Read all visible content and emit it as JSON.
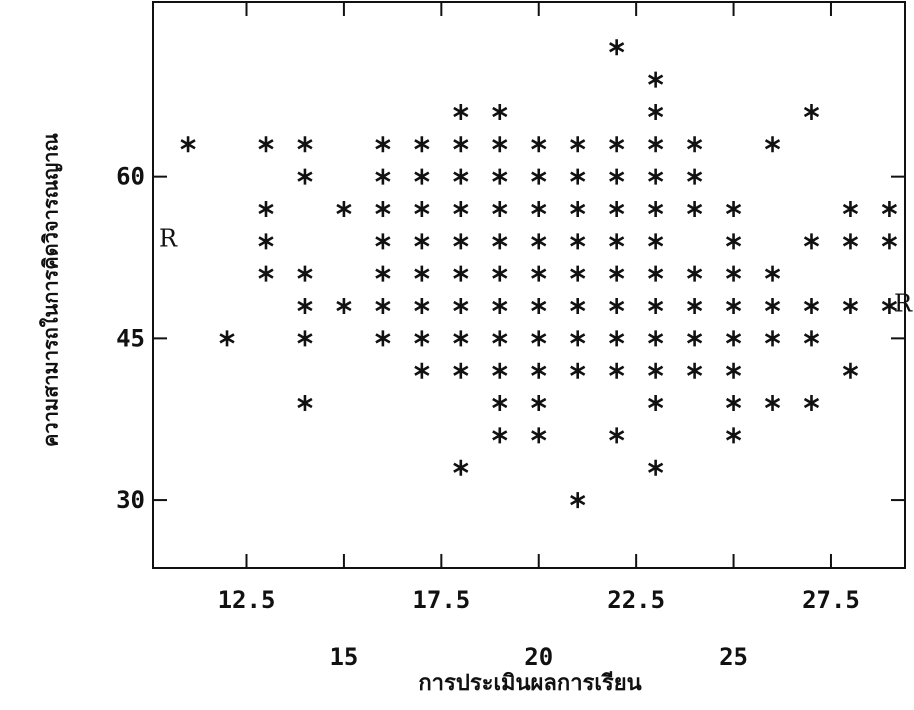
{
  "chart_data": {
    "type": "scatter",
    "x_label": "การประเมินผลการเรียน",
    "y_label": "ความสามารถในการคิดวิจารณญาณ",
    "annotations": [
      "R",
      "R"
    ],
    "xlim": [
      10.1,
      29.4
    ],
    "ylim": [
      23.7,
      76.2
    ],
    "xticks": [
      12.5,
      15,
      17.5,
      20,
      22.5,
      25,
      27.5
    ],
    "yticks": [
      30,
      45,
      60
    ],
    "color": "#111111",
    "series": [
      {
        "x": [
          11,
          12,
          13,
          13,
          13,
          13,
          14,
          14,
          14,
          14,
          14,
          14,
          15,
          15,
          16,
          16,
          16,
          16,
          16,
          16,
          16,
          17,
          17,
          17,
          17,
          17,
          17,
          17,
          17,
          18,
          18,
          18,
          18,
          18,
          18,
          18,
          18,
          18,
          18,
          19,
          19,
          19,
          19,
          19,
          19,
          19,
          19,
          19,
          19,
          19,
          20,
          20,
          20,
          20,
          20,
          20,
          20,
          20,
          20,
          20,
          21,
          21,
          21,
          21,
          21,
          21,
          21,
          21,
          21,
          22,
          22,
          22,
          22,
          22,
          22,
          22,
          22,
          22,
          22,
          23,
          23,
          23,
          23,
          23,
          23,
          23,
          23,
          23,
          23,
          23,
          23,
          24,
          24,
          24,
          24,
          24,
          24,
          24,
          25,
          25,
          25,
          25,
          25,
          25,
          25,
          25,
          26,
          26,
          26,
          26,
          26,
          27,
          27,
          27,
          27,
          27,
          28,
          28,
          28,
          28,
          29,
          29,
          29
        ],
        "values": [
          63,
          45,
          63,
          57,
          54,
          51,
          63,
          60,
          51,
          48,
          45,
          39,
          57,
          48,
          63,
          60,
          57,
          54,
          51,
          48,
          45,
          63,
          60,
          57,
          54,
          51,
          48,
          45,
          42,
          66,
          63,
          60,
          57,
          54,
          51,
          48,
          45,
          42,
          33,
          66,
          63,
          60,
          57,
          54,
          51,
          48,
          45,
          42,
          39,
          36,
          63,
          60,
          57,
          54,
          51,
          48,
          45,
          42,
          39,
          36,
          63,
          60,
          57,
          54,
          51,
          48,
          45,
          42,
          30,
          72,
          63,
          60,
          57,
          54,
          51,
          48,
          45,
          42,
          36,
          69,
          66,
          63,
          60,
          57,
          54,
          51,
          48,
          45,
          42,
          39,
          33,
          63,
          60,
          57,
          51,
          48,
          45,
          42,
          57,
          54,
          51,
          48,
          45,
          42,
          39,
          36,
          63,
          51,
          48,
          45,
          39,
          66,
          54,
          48,
          45,
          39,
          57,
          54,
          48,
          42,
          57,
          54,
          48
        ]
      }
    ]
  }
}
